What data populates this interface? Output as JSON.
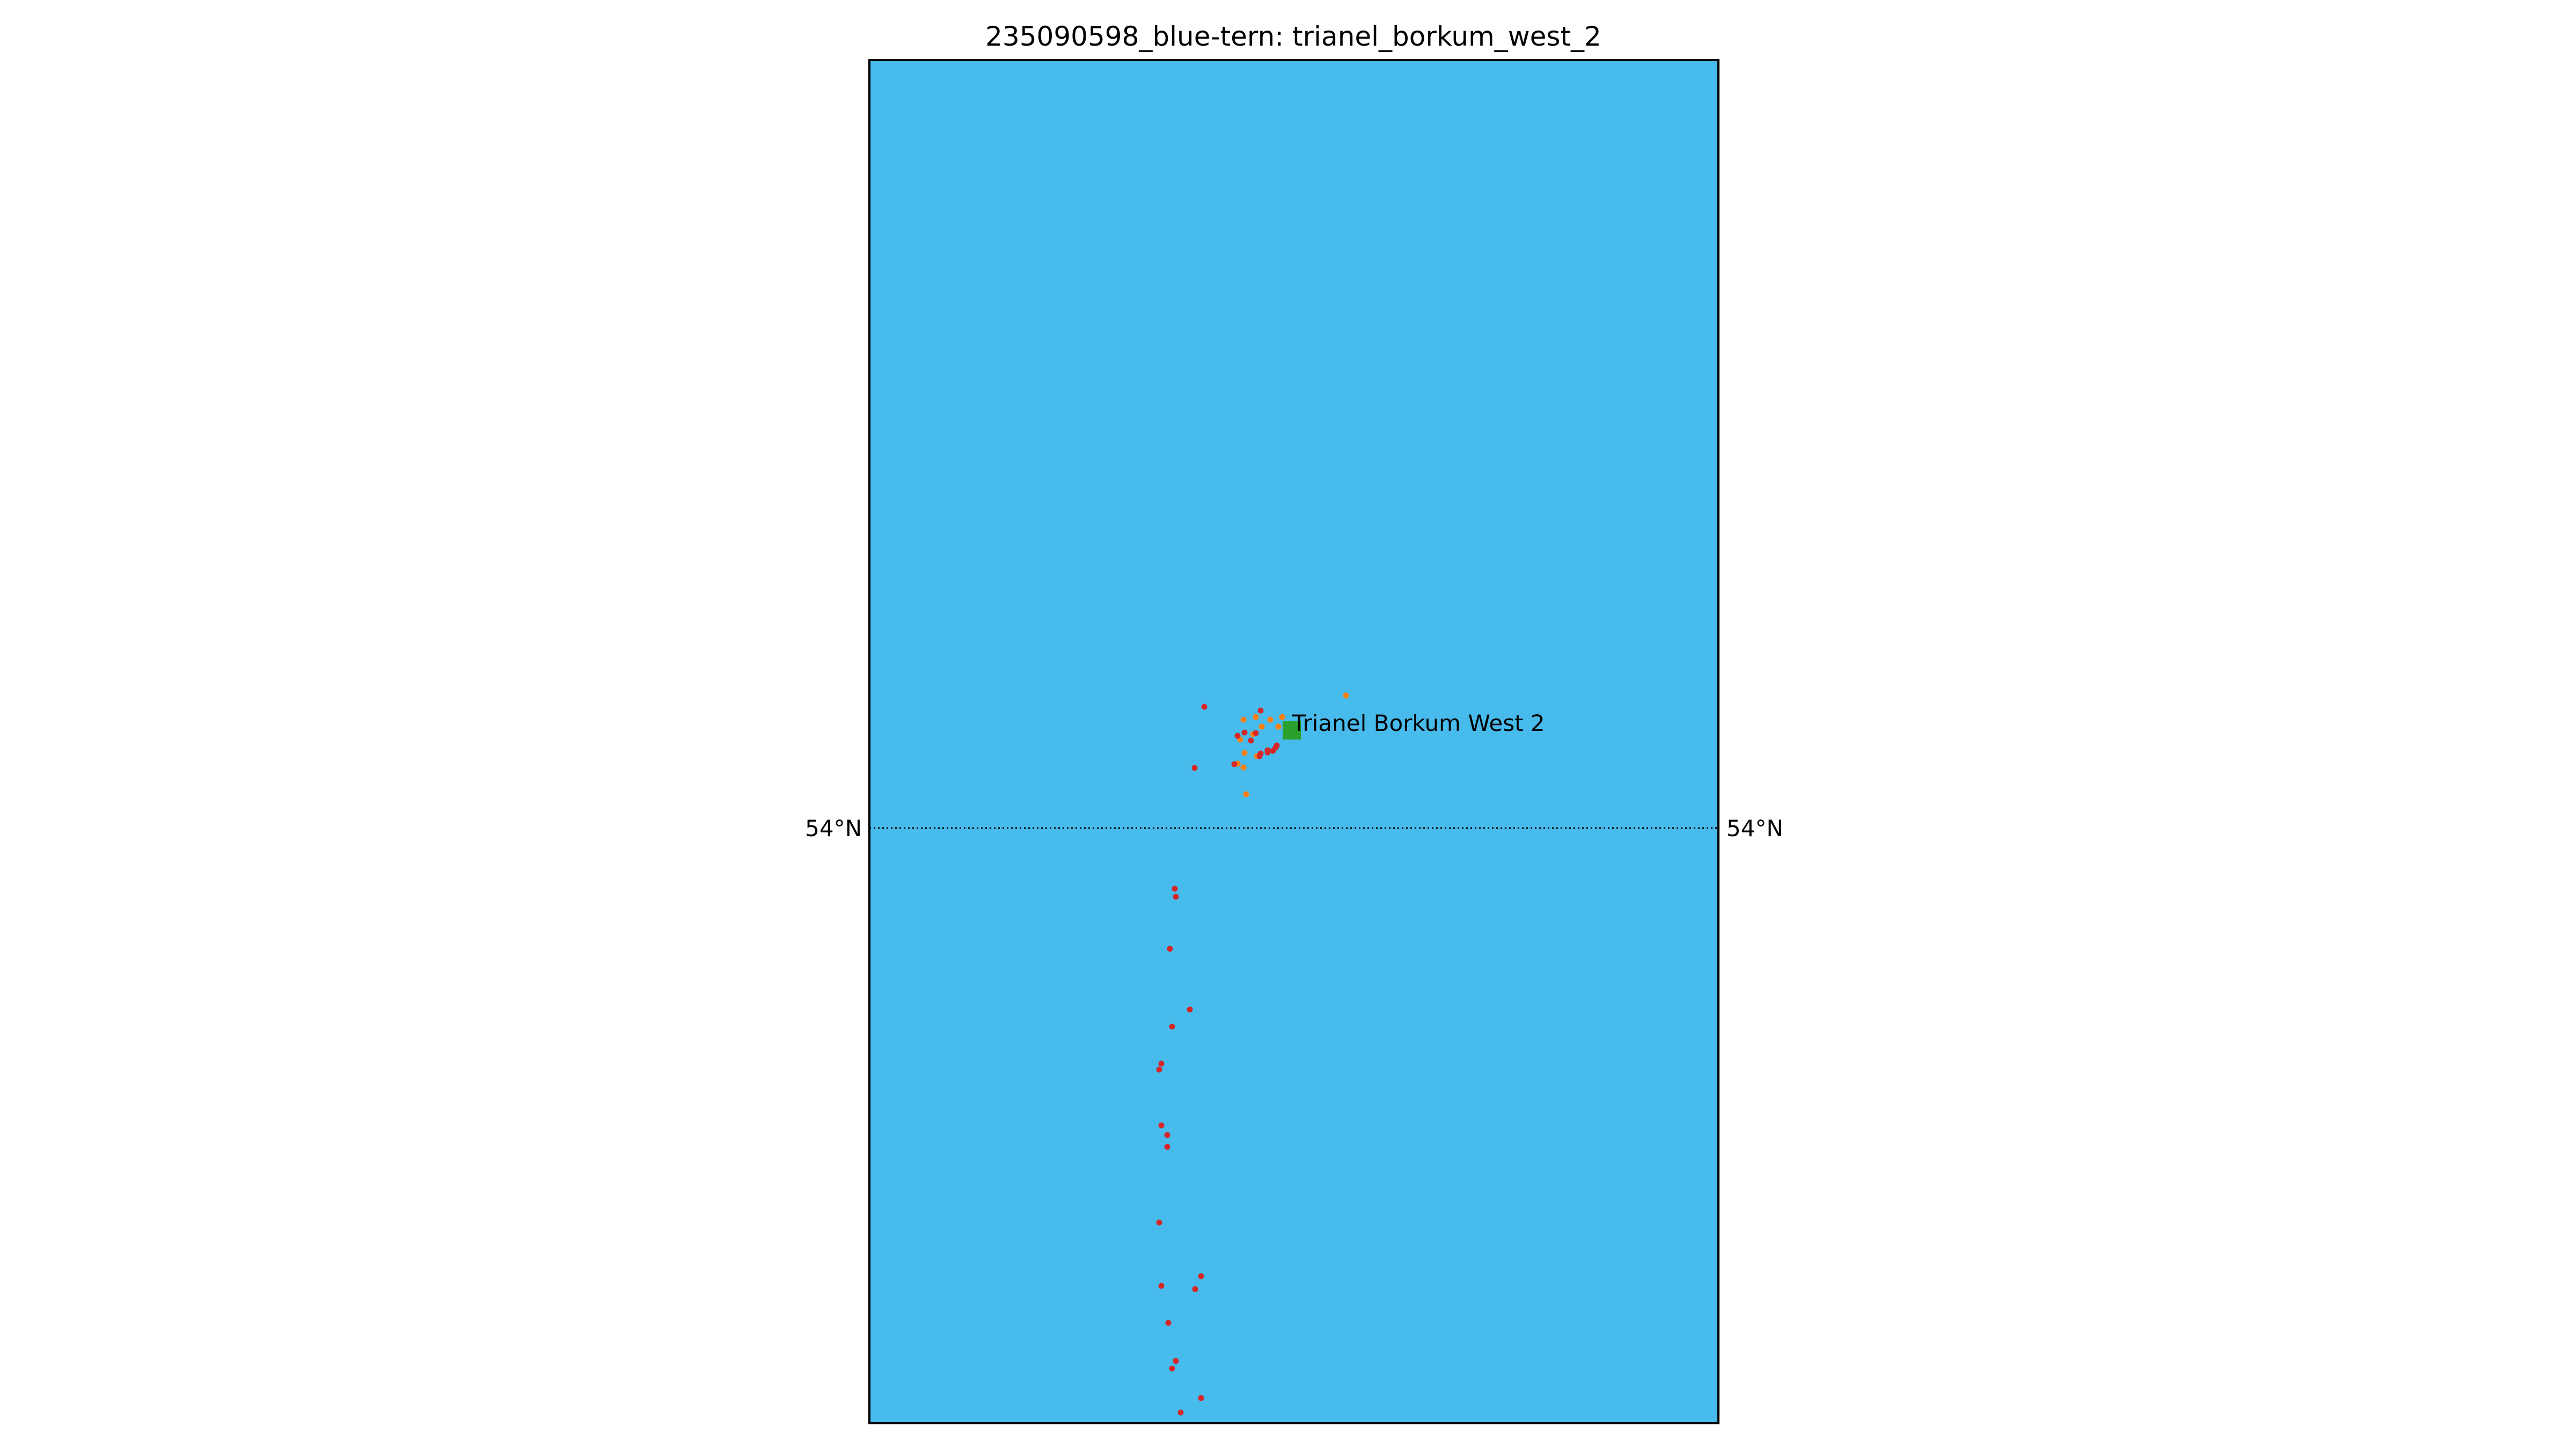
{
  "title": "235090598_blue-tern: trianel_borkum_west_2",
  "colors": {
    "sea": "#48bbed",
    "frame": "#000000",
    "site_marker": "#2ca02c",
    "track_red": "#d62728",
    "track_orange": "#ff7f0e"
  },
  "map": {
    "parallel": {
      "value": 54,
      "label_left": "54°N",
      "label_right": "54°N",
      "style": "dotted"
    },
    "site": {
      "name": "Trianel Borkum West 2",
      "marker": "square"
    },
    "track_points_red_count": 34,
    "track_points_orange_count": 14
  }
}
